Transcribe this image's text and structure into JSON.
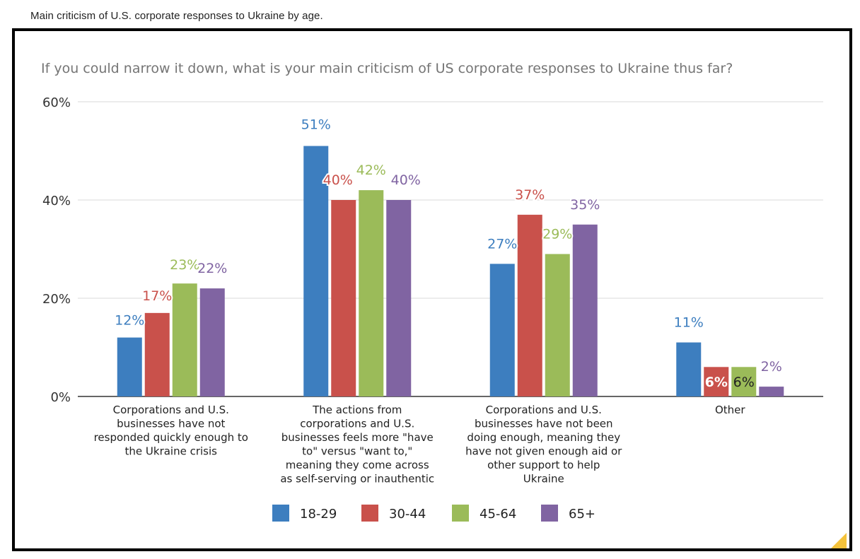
{
  "page": {
    "caption": "Main criticism of U.S. corporate responses to Ukraine by age."
  },
  "colors": {
    "series": [
      "#3d7ebf",
      "#c9514b",
      "#9bbb59",
      "#8064a2"
    ],
    "grid": "#d9d9d9",
    "axis": "#333333",
    "accent": "#f5c33b"
  },
  "chart_data": {
    "type": "bar",
    "title": "If you could narrow it down, what is your main criticism of US corporate responses to Ukraine thus far?",
    "xlabel": "",
    "ylabel": "",
    "ylim": [
      0,
      60
    ],
    "yticks": [
      "0%",
      "20%",
      "40%",
      "60%"
    ],
    "ytick_values": [
      0,
      20,
      40,
      60
    ],
    "grid": true,
    "legend_position": "bottom",
    "categories": [
      [
        "Corporations and U.S.",
        "businesses have not",
        "responded quickly enough to",
        "the Ukraine crisis"
      ],
      [
        "The actions from",
        "corporations and U.S.",
        "businesses feels more \"have",
        "to\" versus \"want to,\"",
        "meaning they come across",
        "as self-serving or inauthentic"
      ],
      [
        "Corporations and U.S.",
        "businesses have not been",
        "doing enough, meaning they",
        "have not given enough aid or",
        "other support to help",
        "Ukraine"
      ],
      [
        "Other"
      ]
    ],
    "series": [
      {
        "name": "18-29",
        "values": [
          12,
          51,
          27,
          11
        ],
        "labels": [
          "12%",
          "51%",
          "27%",
          "11%"
        ]
      },
      {
        "name": "30-44",
        "values": [
          17,
          40,
          37,
          6
        ],
        "labels": [
          "17%",
          "40%",
          "37%",
          "6%"
        ]
      },
      {
        "name": "45-64",
        "values": [
          23,
          42,
          29,
          6
        ],
        "labels": [
          "23%",
          "42%",
          "29%",
          "6%"
        ]
      },
      {
        "name": "65+",
        "values": [
          22,
          40,
          35,
          2
        ],
        "labels": [
          "22%",
          "40%",
          "35%",
          "2%"
        ]
      }
    ]
  }
}
